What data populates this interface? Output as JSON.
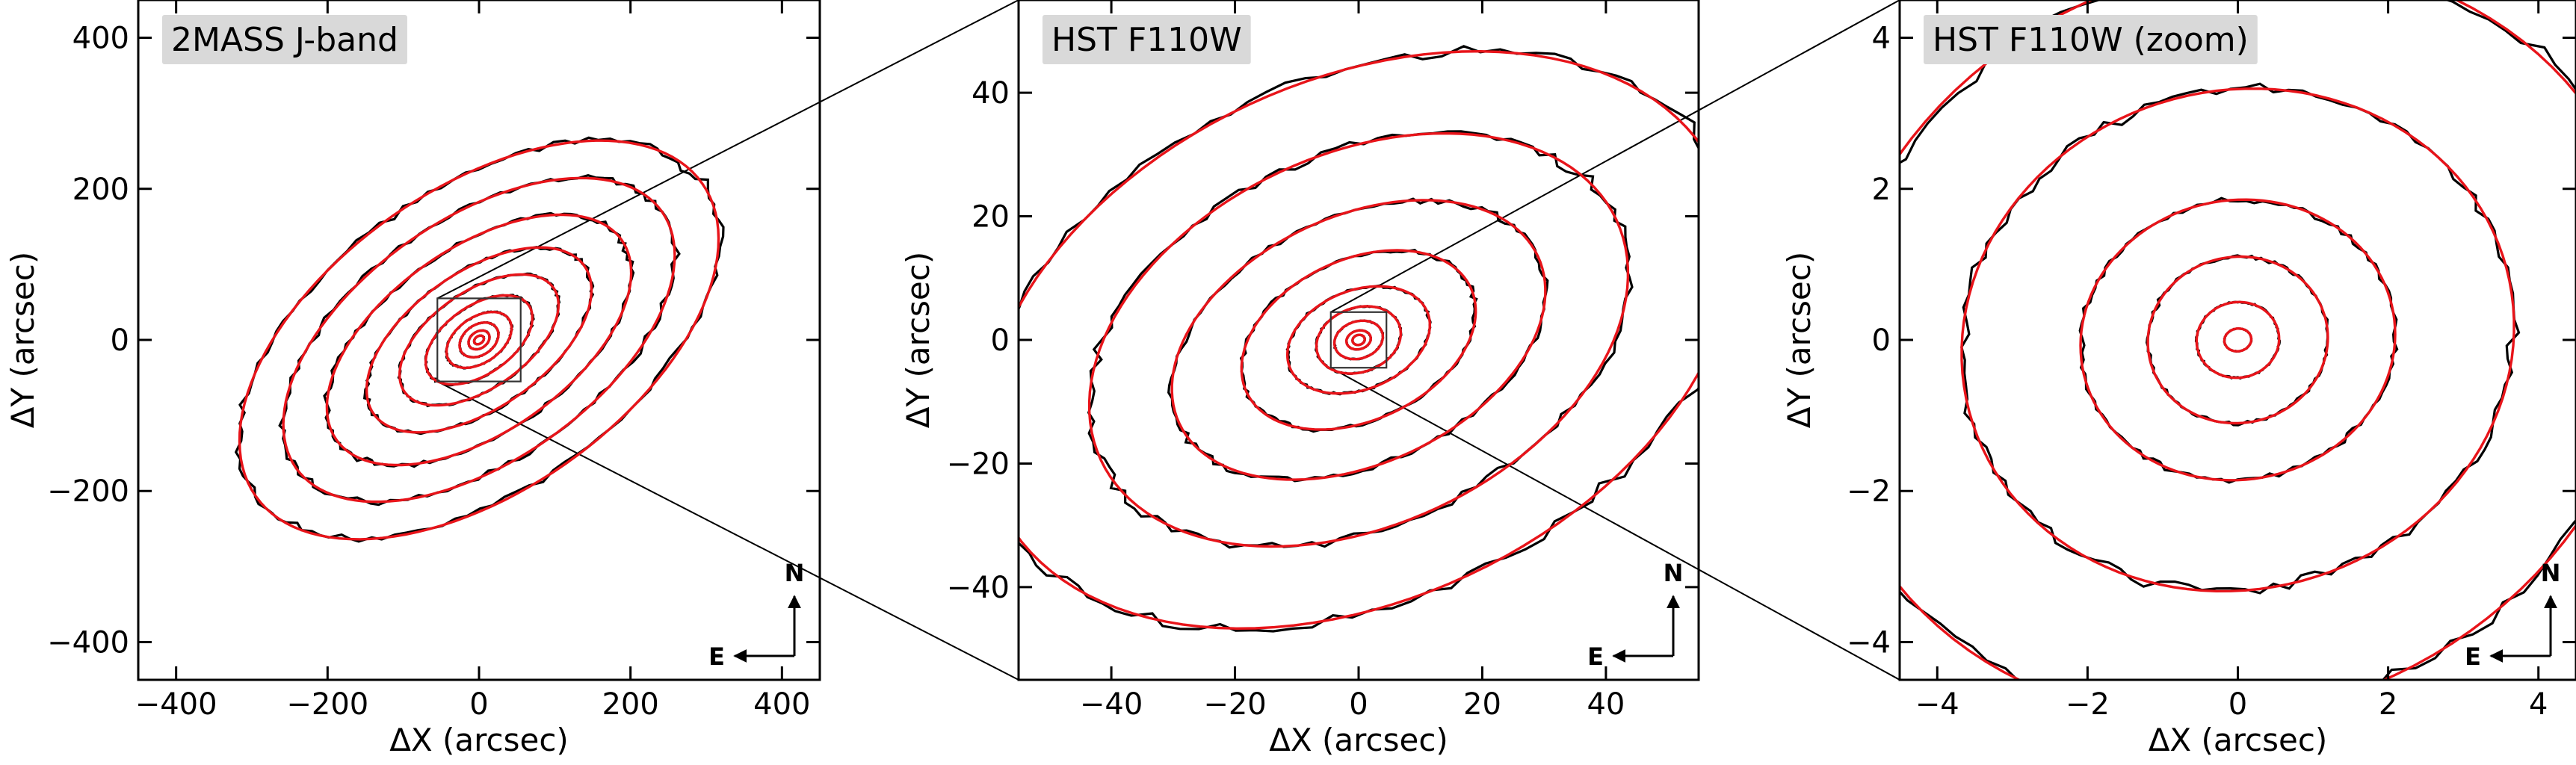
{
  "chart_data": [
    {
      "type": "contour",
      "title": "2MASS J-band",
      "xlabel": "ΔX (arcsec)",
      "ylabel": "ΔY (arcsec)",
      "xlim": [
        -450,
        450
      ],
      "ylim": [
        -450,
        450
      ],
      "xticks": [
        -400,
        -200,
        0,
        200,
        400
      ],
      "yticks": [
        -400,
        -200,
        0,
        200,
        400
      ],
      "xtick_labels": [
        "−400",
        "−200",
        "0",
        "200",
        "400"
      ],
      "ytick_labels": [
        "−400",
        "−200",
        "0",
        "200",
        "400"
      ],
      "ellipses": [
        {
          "a": 360,
          "b": 200,
          "pa": 35
        },
        {
          "a": 295,
          "b": 160,
          "pa": 35
        },
        {
          "a": 230,
          "b": 122,
          "pa": 35
        },
        {
          "a": 170,
          "b": 90,
          "pa": 35
        },
        {
          "a": 120,
          "b": 64,
          "pa": 35
        },
        {
          "a": 80,
          "b": 45,
          "pa": 35
        },
        {
          "a": 48,
          "b": 30,
          "pa": 35
        },
        {
          "a": 28,
          "b": 20,
          "pa": 35
        },
        {
          "a": 15,
          "b": 11,
          "pa": 35
        },
        {
          "a": 7,
          "b": 5,
          "pa": 35
        }
      ],
      "zoom_box": [
        -55,
        55
      ],
      "compass": {
        "north": "N",
        "east": "E"
      }
    },
    {
      "type": "contour",
      "title": "HST F110W",
      "xlabel": "ΔX (arcsec)",
      "ylabel": "ΔY (arcsec)",
      "xlim": [
        -55,
        55
      ],
      "ylim": [
        -55,
        55
      ],
      "xticks": [
        -40,
        -20,
        0,
        20,
        40
      ],
      "yticks": [
        -40,
        -20,
        0,
        20,
        40
      ],
      "xtick_labels": [
        "−40",
        "−20",
        "0",
        "20",
        "40"
      ],
      "ytick_labels": [
        "−40",
        "−20",
        "0",
        "20",
        "40"
      ],
      "ellipses": [
        {
          "a": 64,
          "b": 42,
          "pa": 25
        },
        {
          "a": 46,
          "b": 30,
          "pa": 25
        },
        {
          "a": 32,
          "b": 20,
          "pa": 25
        },
        {
          "a": 20,
          "b": 13,
          "pa": 25
        },
        {
          "a": 12,
          "b": 8,
          "pa": 22
        },
        {
          "a": 7,
          "b": 5.2,
          "pa": 20
        },
        {
          "a": 4,
          "b": 3,
          "pa": 18
        },
        {
          "a": 2,
          "b": 1.5,
          "pa": 15
        },
        {
          "a": 1,
          "b": 0.8,
          "pa": 15
        }
      ],
      "zoom_box": [
        -4.5,
        4.5
      ],
      "compass": {
        "north": "N",
        "east": "E"
      }
    },
    {
      "type": "contour",
      "title": "HST F110W (zoom)",
      "xlabel": "ΔX (arcsec)",
      "ylabel": "ΔY (arcsec)",
      "xlim": [
        -4.5,
        4.5
      ],
      "ylim": [
        -4.5,
        4.5
      ],
      "xticks": [
        -4,
        -2,
        0,
        2,
        4
      ],
      "yticks": [
        -4,
        -2,
        0,
        2,
        4
      ],
      "xtick_labels": [
        "−4",
        "−2",
        "0",
        "2",
        "4"
      ],
      "ytick_labels": [
        "−4",
        "−2",
        "0",
        "2",
        "4"
      ],
      "ellipses": [
        {
          "a": 5.6,
          "b": 4.9,
          "pa": 25
        },
        {
          "a": 3.7,
          "b": 3.3,
          "pa": 15
        },
        {
          "a": 2.1,
          "b": 1.85,
          "pa": 10
        },
        {
          "a": 1.2,
          "b": 1.1,
          "pa": 10
        },
        {
          "a": 0.55,
          "b": 0.5,
          "pa": 10
        },
        {
          "a": 0.18,
          "b": 0.15,
          "pa": 10
        }
      ],
      "compass": {
        "north": "N",
        "east": "E"
      }
    }
  ]
}
